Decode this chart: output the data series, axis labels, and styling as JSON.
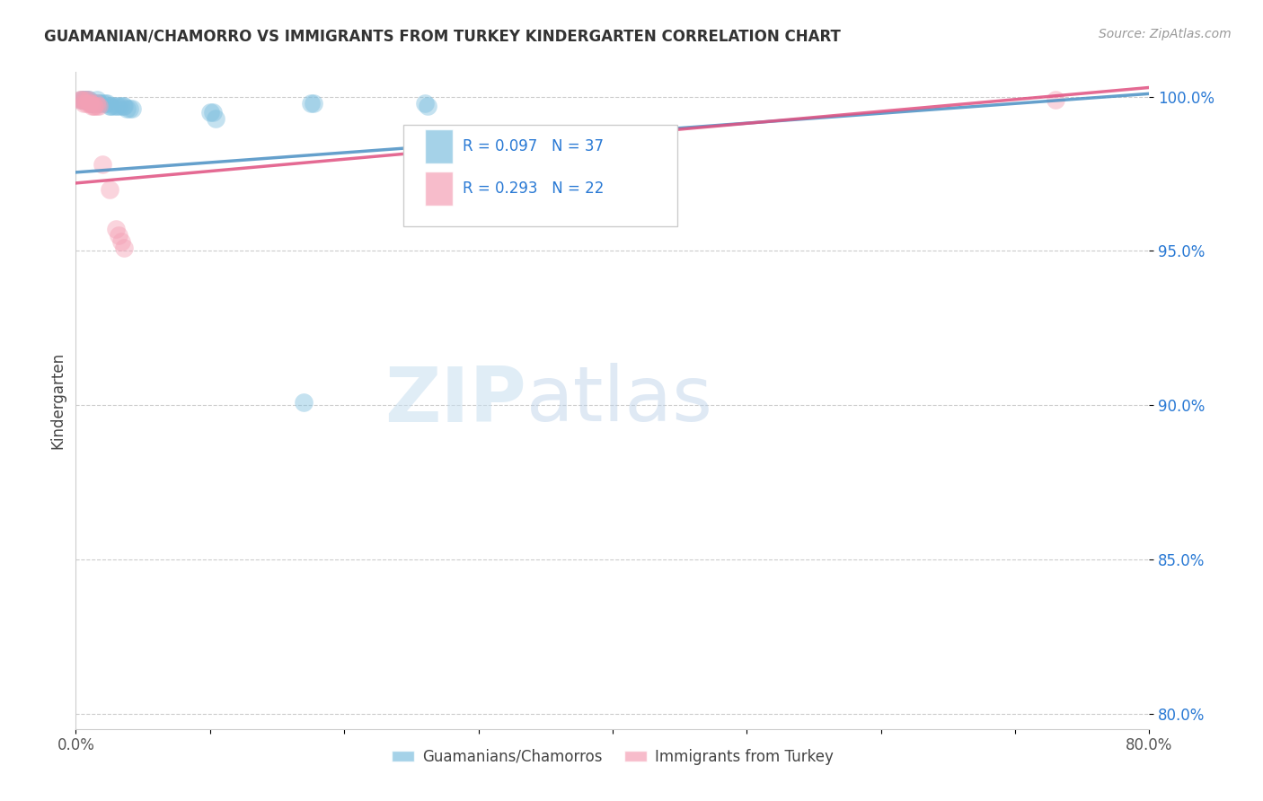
{
  "title": "GUAMANIAN/CHAMORRO VS IMMIGRANTS FROM TURKEY KINDERGARTEN CORRELATION CHART",
  "source": "Source: ZipAtlas.com",
  "ylabel": "Kindergarten",
  "xlim": [
    0.0,
    0.8
  ],
  "ylim": [
    0.795,
    1.008
  ],
  "xticks": [
    0.0,
    0.1,
    0.2,
    0.3,
    0.4,
    0.5,
    0.6,
    0.7,
    0.8
  ],
  "xticklabels": [
    "0.0%",
    "",
    "",
    "",
    "",
    "",
    "",
    "",
    "80.0%"
  ],
  "yticks": [
    0.8,
    0.85,
    0.9,
    0.95,
    1.0
  ],
  "yticklabels": [
    "80.0%",
    "85.0%",
    "90.0%",
    "95.0%",
    "100.0%"
  ],
  "legend_label1": "Guamanians/Chamorros",
  "legend_label2": "Immigrants from Turkey",
  "r1": 0.097,
  "n1": 37,
  "r2": 0.293,
  "n2": 22,
  "color_blue": "#7fbfdf",
  "color_pink": "#f4a0b5",
  "color_blue_line": "#4a90c4",
  "color_pink_line": "#e05080",
  "watermark_zip": "ZIP",
  "watermark_atlas": "atlas",
  "blue_x": [
    0.004,
    0.005,
    0.006,
    0.007,
    0.008,
    0.009,
    0.01,
    0.011,
    0.012,
    0.013,
    0.014,
    0.015,
    0.016,
    0.017,
    0.018,
    0.02,
    0.022,
    0.023,
    0.025,
    0.026,
    0.028,
    0.03,
    0.031,
    0.033,
    0.035,
    0.036,
    0.038,
    0.04,
    0.042,
    0.1,
    0.102,
    0.104,
    0.175,
    0.177,
    0.26,
    0.262,
    0.17
  ],
  "blue_y": [
    0.999,
    0.999,
    0.999,
    0.999,
    0.999,
    0.999,
    0.999,
    0.998,
    0.998,
    0.998,
    0.998,
    0.998,
    0.999,
    0.998,
    0.998,
    0.998,
    0.998,
    0.998,
    0.997,
    0.997,
    0.997,
    0.997,
    0.997,
    0.997,
    0.997,
    0.997,
    0.996,
    0.996,
    0.996,
    0.995,
    0.995,
    0.993,
    0.998,
    0.998,
    0.998,
    0.997,
    0.901
  ],
  "pink_x": [
    0.003,
    0.004,
    0.005,
    0.006,
    0.007,
    0.008,
    0.009,
    0.01,
    0.011,
    0.012,
    0.013,
    0.014,
    0.015,
    0.016,
    0.017,
    0.02,
    0.025,
    0.03,
    0.032,
    0.034,
    0.036,
    0.73
  ],
  "pink_y": [
    0.999,
    0.999,
    0.999,
    0.998,
    0.999,
    0.998,
    0.999,
    0.998,
    0.998,
    0.997,
    0.997,
    0.997,
    0.998,
    0.997,
    0.997,
    0.978,
    0.97,
    0.957,
    0.955,
    0.953,
    0.951,
    0.999
  ],
  "line_blue_x0": 0.0,
  "line_blue_x1": 0.8,
  "line_blue_y0": 0.9755,
  "line_blue_y1": 1.001,
  "line_pink_x0": 0.0,
  "line_pink_x1": 0.8,
  "line_pink_y0": 0.972,
  "line_pink_y1": 1.003
}
